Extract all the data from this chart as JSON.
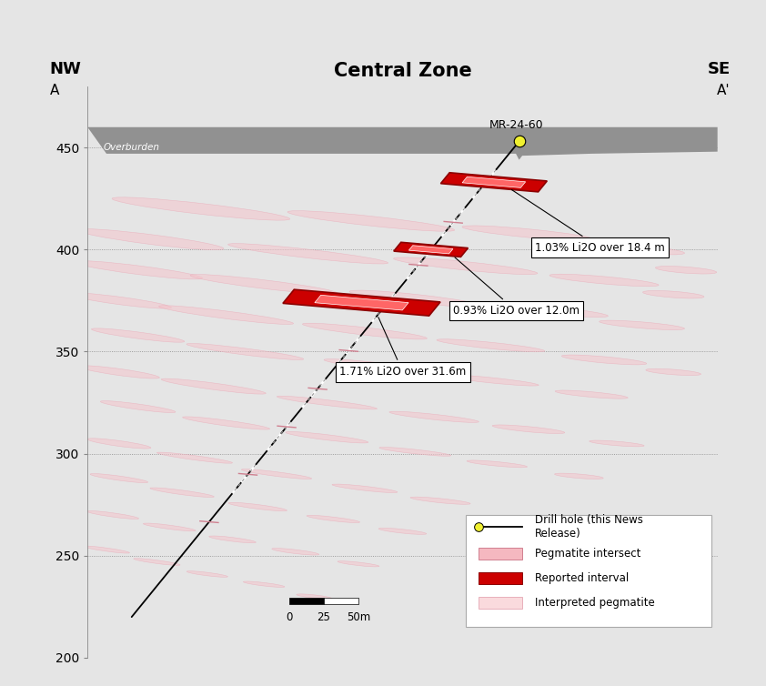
{
  "title": "Central Zone",
  "nw_label": "NW",
  "se_label": "SE",
  "a_label": "A",
  "a_prime_label": "A'",
  "background_color": "#e5e5e5",
  "plot_bg_color": "#e5e5e5",
  "ylim": [
    200,
    480
  ],
  "xlim": [
    0,
    100
  ],
  "yticks": [
    200,
    250,
    300,
    350,
    400,
    450
  ],
  "grid_color": "#888888",
  "overburden_color": "#919191",
  "overburden_label": "Overburden",
  "drill_hole_label": "MR-24-60",
  "drill_hole_x": 68.5,
  "drill_hole_y": 453,
  "drill_hole_color": "#f0f030",
  "drill_line_x1": 68.5,
  "drill_line_y1": 453,
  "drill_line_x2": 7,
  "drill_line_y2": 220,
  "pegmatite_color": "#f5b8c0",
  "reported_interval_color": "#cc0000",
  "reported_interval_edge": "#8b0000",
  "annotation_1": "1.03% Li2O over 18.4 m",
  "annotation_2": "0.93% Li2O over 12.0m",
  "annotation_3": "1.71% Li2O over 31.6m"
}
